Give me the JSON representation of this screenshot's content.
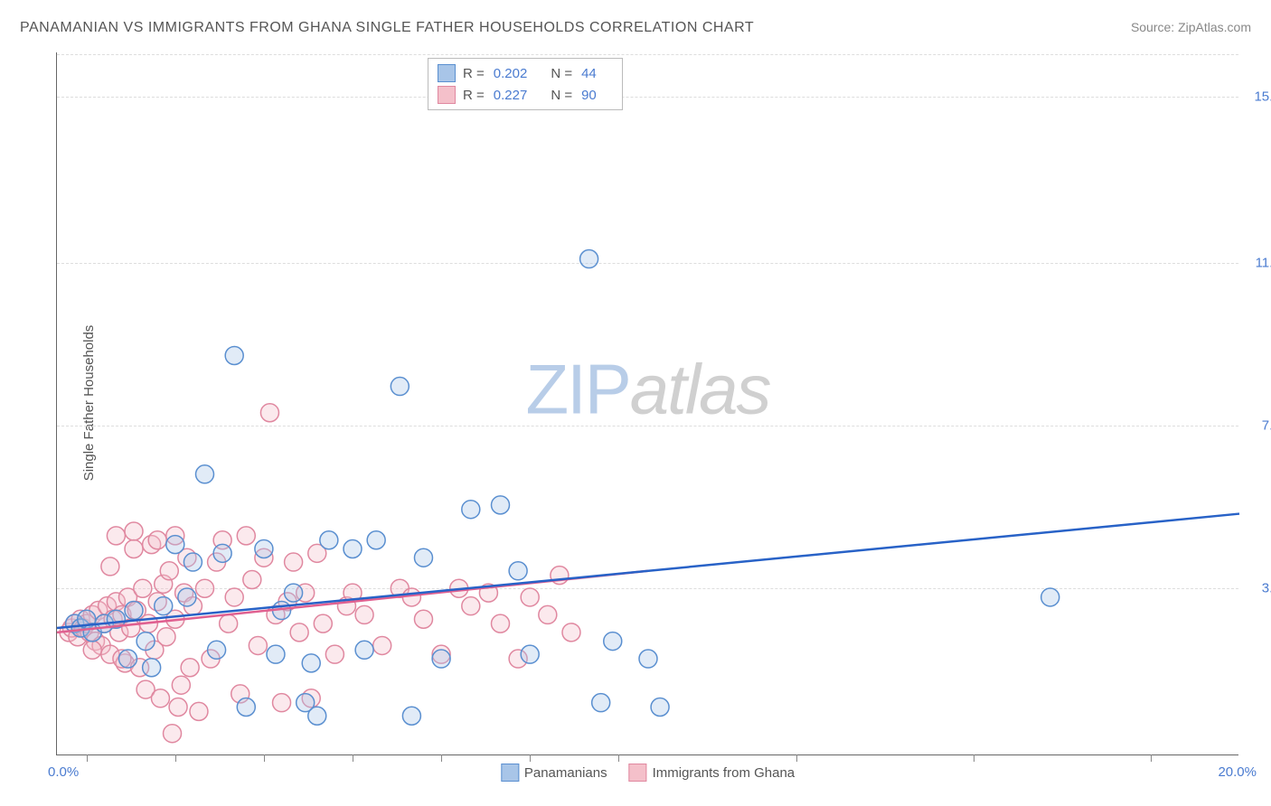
{
  "title": "PANAMANIAN VS IMMIGRANTS FROM GHANA SINGLE FATHER HOUSEHOLDS CORRELATION CHART",
  "source": "Source: ZipAtlas.com",
  "y_label": "Single Father Households",
  "watermark": {
    "zip": "ZIP",
    "atlas": "atlas"
  },
  "chart": {
    "type": "scatter",
    "xlim": [
      0,
      20
    ],
    "ylim": [
      0,
      16
    ],
    "x_min_label": "0.0%",
    "x_max_label": "20.0%",
    "y_ticks": [
      {
        "v": 3.8,
        "label": "3.8%"
      },
      {
        "v": 7.5,
        "label": "7.5%"
      },
      {
        "v": 11.2,
        "label": "11.2%"
      },
      {
        "v": 15.0,
        "label": "15.0%"
      }
    ],
    "x_tick_positions": [
      0.5,
      2,
      3.5,
      5,
      6.5,
      8,
      9.5,
      12.5,
      15.5,
      18.5
    ],
    "background_color": "#ffffff",
    "grid_color": "#dddddd",
    "marker_radius": 10,
    "series": [
      {
        "id": "panamanians",
        "label": "Panamanians",
        "fill": "#a8c5e8",
        "stroke": "#5a8fd0",
        "R": "0.202",
        "N": "44",
        "trend": {
          "x1": 0,
          "y1": 2.9,
          "x2": 20,
          "y2": 5.5,
          "color": "#2862c7"
        },
        "points": [
          [
            0.3,
            3.0
          ],
          [
            0.4,
            2.9
          ],
          [
            0.5,
            3.1
          ],
          [
            0.6,
            2.8
          ],
          [
            0.8,
            3.0
          ],
          [
            1.0,
            3.1
          ],
          [
            1.2,
            2.2
          ],
          [
            1.3,
            3.3
          ],
          [
            1.5,
            2.6
          ],
          [
            1.8,
            3.4
          ],
          [
            2.0,
            4.8
          ],
          [
            2.2,
            3.6
          ],
          [
            2.5,
            6.4
          ],
          [
            2.7,
            2.4
          ],
          [
            2.8,
            4.6
          ],
          [
            3.0,
            9.1
          ],
          [
            3.2,
            1.1
          ],
          [
            3.5,
            4.7
          ],
          [
            3.7,
            2.3
          ],
          [
            4.0,
            3.7
          ],
          [
            4.2,
            1.2
          ],
          [
            4.4,
            0.9
          ],
          [
            4.6,
            4.9
          ],
          [
            5.0,
            4.7
          ],
          [
            5.2,
            2.4
          ],
          [
            5.8,
            8.4
          ],
          [
            6.0,
            0.9
          ],
          [
            6.2,
            4.5
          ],
          [
            6.5,
            2.2
          ],
          [
            7.0,
            5.6
          ],
          [
            7.5,
            5.7
          ],
          [
            7.8,
            4.2
          ],
          [
            8.0,
            2.3
          ],
          [
            9.0,
            11.3
          ],
          [
            9.2,
            1.2
          ],
          [
            9.4,
            2.6
          ],
          [
            10.0,
            2.2
          ],
          [
            10.2,
            1.1
          ],
          [
            16.8,
            3.6
          ],
          [
            5.4,
            4.9
          ],
          [
            3.8,
            3.3
          ],
          [
            1.6,
            2.0
          ],
          [
            2.3,
            4.4
          ],
          [
            4.3,
            2.1
          ]
        ]
      },
      {
        "id": "ghana",
        "label": "Immigrants from Ghana",
        "fill": "#f4c0ca",
        "stroke": "#e088a0",
        "R": "0.227",
        "N": "90",
        "trend": {
          "x1": 0,
          "y1": 2.8,
          "x2": 10,
          "y2": 4.2,
          "color": "#e06090"
        },
        "points": [
          [
            0.2,
            2.8
          ],
          [
            0.25,
            2.9
          ],
          [
            0.3,
            3.0
          ],
          [
            0.35,
            2.7
          ],
          [
            0.4,
            3.1
          ],
          [
            0.45,
            2.9
          ],
          [
            0.5,
            3.0
          ],
          [
            0.55,
            2.8
          ],
          [
            0.6,
            3.2
          ],
          [
            0.65,
            2.6
          ],
          [
            0.7,
            3.3
          ],
          [
            0.75,
            2.5
          ],
          [
            0.8,
            3.0
          ],
          [
            0.85,
            3.4
          ],
          [
            0.9,
            2.3
          ],
          [
            0.95,
            3.1
          ],
          [
            1.0,
            3.5
          ],
          [
            1.05,
            2.8
          ],
          [
            1.1,
            3.2
          ],
          [
            1.15,
            2.1
          ],
          [
            1.2,
            3.6
          ],
          [
            1.25,
            2.9
          ],
          [
            1.3,
            5.1
          ],
          [
            1.35,
            3.3
          ],
          [
            1.4,
            2.0
          ],
          [
            1.45,
            3.8
          ],
          [
            1.5,
            1.5
          ],
          [
            1.55,
            3.0
          ],
          [
            1.6,
            4.8
          ],
          [
            1.65,
            2.4
          ],
          [
            1.7,
            3.5
          ],
          [
            1.75,
            1.3
          ],
          [
            1.8,
            3.9
          ],
          [
            1.85,
            2.7
          ],
          [
            1.9,
            4.2
          ],
          [
            1.95,
            0.5
          ],
          [
            2.0,
            3.1
          ],
          [
            2.05,
            1.1
          ],
          [
            2.1,
            1.6
          ],
          [
            2.15,
            3.7
          ],
          [
            2.2,
            4.5
          ],
          [
            2.25,
            2.0
          ],
          [
            2.3,
            3.4
          ],
          [
            2.4,
            1.0
          ],
          [
            2.5,
            3.8
          ],
          [
            2.6,
            2.2
          ],
          [
            2.7,
            4.4
          ],
          [
            2.8,
            4.9
          ],
          [
            2.9,
            3.0
          ],
          [
            3.0,
            3.6
          ],
          [
            3.1,
            1.4
          ],
          [
            3.2,
            5.0
          ],
          [
            3.3,
            4.0
          ],
          [
            3.4,
            2.5
          ],
          [
            3.5,
            4.5
          ],
          [
            3.6,
            7.8
          ],
          [
            3.7,
            3.2
          ],
          [
            3.8,
            1.2
          ],
          [
            3.9,
            3.5
          ],
          [
            4.0,
            4.4
          ],
          [
            4.1,
            2.8
          ],
          [
            4.2,
            3.7
          ],
          [
            4.3,
            1.3
          ],
          [
            4.4,
            4.6
          ],
          [
            4.5,
            3.0
          ],
          [
            4.7,
            2.3
          ],
          [
            4.9,
            3.4
          ],
          [
            5.0,
            3.7
          ],
          [
            5.2,
            3.2
          ],
          [
            5.5,
            2.5
          ],
          [
            5.8,
            3.8
          ],
          [
            6.0,
            3.6
          ],
          [
            6.2,
            3.1
          ],
          [
            6.5,
            2.3
          ],
          [
            6.8,
            3.8
          ],
          [
            7.0,
            3.4
          ],
          [
            7.3,
            3.7
          ],
          [
            7.5,
            3.0
          ],
          [
            7.8,
            2.2
          ],
          [
            8.0,
            3.6
          ],
          [
            8.3,
            3.2
          ],
          [
            8.5,
            4.1
          ],
          [
            8.7,
            2.8
          ],
          [
            1.0,
            5.0
          ],
          [
            1.3,
            4.7
          ],
          [
            0.9,
            4.3
          ],
          [
            1.7,
            4.9
          ],
          [
            2.0,
            5.0
          ],
          [
            1.1,
            2.2
          ],
          [
            0.6,
            2.4
          ]
        ]
      }
    ]
  }
}
